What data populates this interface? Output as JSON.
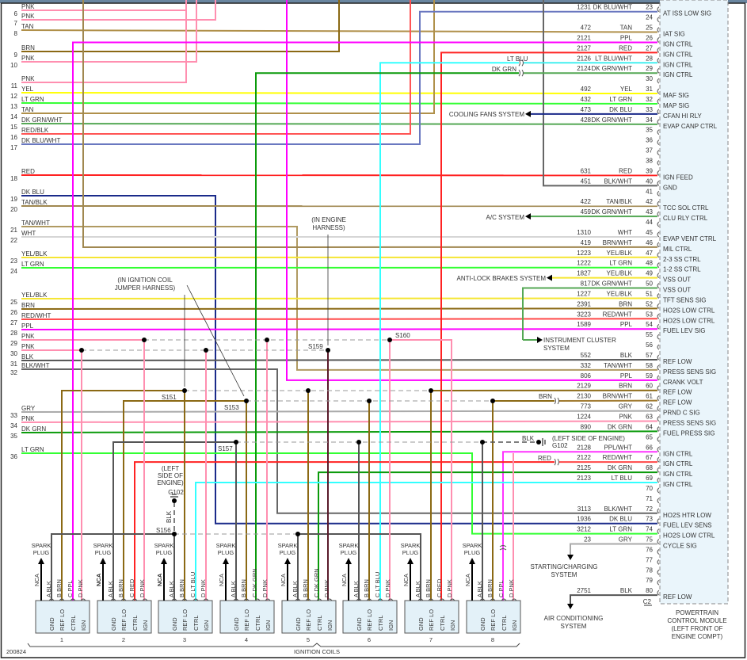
{
  "wire_colors": {
    "PNK": "#ff8fb0",
    "TAN": "#b0904a",
    "BRN": "#8b6914",
    "YEL": "#ffff00",
    "LT GRN": "#33ff33",
    "DK GRN": "#0a9a0a",
    "DK GRN/WHT": "#55a855",
    "RED": "#ff2222",
    "RED/BLK": "#ff5555",
    "RED/WHT": "#ff4848",
    "DK BLU": "#1a2a8a",
    "DK BLU/WHT": "#6a78c0",
    "PPL": "#ff00ff",
    "PPL/WHT": "#ff33ff",
    "WHT": "#d6d6d6",
    "BLK": "#555555",
    "BLK/WHT": "#666666",
    "GRY": "#aaaaaa",
    "LT BLU": "#33ffff",
    "LT BLU/WHT": "#44f0f0",
    "TAN/BLK": "#a08850",
    "TAN/WHT": "#b09a62",
    "YEL/BLK": "#f5e633",
    "BRN/WHT": "#a07a30",
    "MAROON": "#5a1a2a"
  },
  "left_connector": [
    {
      "pin": "6",
      "color": "PNK"
    },
    {
      "pin": "7",
      "color": "PNK"
    },
    {
      "pin": "8",
      "color": "TAN"
    },
    {
      "pin": "9",
      "color": "BRN"
    },
    {
      "pin": "10",
      "color": "PNK"
    },
    {
      "pin": "11",
      "color": "PNK"
    },
    {
      "pin": "12",
      "color": "YEL"
    },
    {
      "pin": "13",
      "color": "LT GRN"
    },
    {
      "pin": "14",
      "color": "TAN"
    },
    {
      "pin": "15",
      "color": "DK GRN/WHT"
    },
    {
      "pin": "16",
      "color": "RED/BLK"
    },
    {
      "pin": "17",
      "color": "DK BLU/WHT"
    },
    {
      "pin": "18",
      "color": "RED"
    },
    {
      "pin": "19",
      "color": "DK BLU"
    },
    {
      "pin": "20",
      "color": "TAN/BLK"
    },
    {
      "pin": "21",
      "color": "TAN/WHT"
    },
    {
      "pin": "22",
      "color": "WHT"
    },
    {
      "pin": "23",
      "color": "YEL/BLK"
    },
    {
      "pin": "24",
      "color": "LT GRN"
    },
    {
      "pin": "25",
      "color": "YEL/BLK"
    },
    {
      "pin": "26",
      "color": "BRN"
    },
    {
      "pin": "27",
      "color": "RED/WHT"
    },
    {
      "pin": "28",
      "color": "PPL"
    },
    {
      "pin": "29",
      "color": "PNK"
    },
    {
      "pin": "30",
      "color": "PNK"
    },
    {
      "pin": "31",
      "color": "BLK"
    },
    {
      "pin": "32",
      "color": "BLK/WHT"
    },
    {
      "pin": "33",
      "color": "GRY"
    },
    {
      "pin": "34",
      "color": "PNK"
    },
    {
      "pin": "35",
      "color": "DK GRN"
    },
    {
      "pin": "36",
      "color": "LT GRN"
    }
  ],
  "pcm": {
    "title": [
      "POWERTRAIN",
      "CONTROL MODULE",
      "(LEFT FRONT OF",
      "ENGINE COMPT)"
    ],
    "connector": "C2",
    "pins": [
      {
        "pin": "23",
        "circuit": "1231",
        "color": "DK BLU/WHT",
        "function": "AT ISS LOW SIG"
      },
      {
        "pin": "24",
        "circuit": "",
        "color": "",
        "function": ""
      },
      {
        "pin": "25",
        "circuit": "472",
        "color": "TAN",
        "function": "IAT SIG"
      },
      {
        "pin": "26",
        "circuit": "2121",
        "color": "PPL",
        "function": "IGN CTRL"
      },
      {
        "pin": "27",
        "circuit": "2127",
        "color": "RED",
        "function": "IGN CTRL"
      },
      {
        "pin": "28",
        "circuit": "2126",
        "color": "LT BLU/WHT",
        "function": "IGN CTRL"
      },
      {
        "pin": "29",
        "circuit": "2124",
        "color": "DK GRN/WHT",
        "function": "IGN CTRL"
      },
      {
        "pin": "30",
        "circuit": "",
        "color": "",
        "function": ""
      },
      {
        "pin": "31",
        "circuit": "492",
        "color": "YEL",
        "function": "MAF SIG"
      },
      {
        "pin": "32",
        "circuit": "432",
        "color": "LT GRN",
        "function": "MAP SIG"
      },
      {
        "pin": "33",
        "circuit": "473",
        "color": "DK BLU",
        "function": "CFAN HI RLY"
      },
      {
        "pin": "34",
        "circuit": "428",
        "color": "DK GRN/WHT",
        "function": "EVAP CANP CTRL"
      },
      {
        "pin": "35",
        "circuit": "",
        "color": "",
        "function": ""
      },
      {
        "pin": "36",
        "circuit": "",
        "color": "",
        "function": ""
      },
      {
        "pin": "37",
        "circuit": "",
        "color": "",
        "function": ""
      },
      {
        "pin": "38",
        "circuit": "",
        "color": "",
        "function": ""
      },
      {
        "pin": "39",
        "circuit": "631",
        "color": "RED",
        "function": "IGN FEED"
      },
      {
        "pin": "40",
        "circuit": "451",
        "color": "BLK/WHT",
        "function": "GND"
      },
      {
        "pin": "41",
        "circuit": "",
        "color": "",
        "function": ""
      },
      {
        "pin": "42",
        "circuit": "422",
        "color": "TAN/BLK",
        "function": "TCC SOL CTRL"
      },
      {
        "pin": "43",
        "circuit": "459",
        "color": "DK GRN/WHT",
        "function": "CLU RLY CTRL"
      },
      {
        "pin": "44",
        "circuit": "",
        "color": "",
        "function": ""
      },
      {
        "pin": "45",
        "circuit": "1310",
        "color": "WHT",
        "function": "EVAP VENT CTRL"
      },
      {
        "pin": "46",
        "circuit": "419",
        "color": "BRN/WHT",
        "function": "MIL CTRL"
      },
      {
        "pin": "47",
        "circuit": "1223",
        "color": "YEL/BLK",
        "function": "2-3 SS CTRL"
      },
      {
        "pin": "48",
        "circuit": "1222",
        "color": "LT GRN",
        "function": "1-2 SS CTRL"
      },
      {
        "pin": "49",
        "circuit": "1827",
        "color": "YEL/BLK",
        "function": "VSS OUT"
      },
      {
        "pin": "50",
        "circuit": "817",
        "color": "DK GRN/WHT",
        "function": "VSS OUT"
      },
      {
        "pin": "51",
        "circuit": "1227",
        "color": "YEL/BLK",
        "function": "TFT SENS SIG"
      },
      {
        "pin": "52",
        "circuit": "2391",
        "color": "BRN",
        "function": "HO2S LOW CTRL"
      },
      {
        "pin": "53",
        "circuit": "3223",
        "color": "RED/WHT",
        "function": "HO2S LOW CTRL"
      },
      {
        "pin": "54",
        "circuit": "1589",
        "color": "PPL",
        "function": "FUEL LEV SIG"
      },
      {
        "pin": "55",
        "circuit": "",
        "color": "",
        "function": ""
      },
      {
        "pin": "56",
        "circuit": "",
        "color": "",
        "function": ""
      },
      {
        "pin": "57",
        "circuit": "552",
        "color": "BLK",
        "function": "REF LOW"
      },
      {
        "pin": "58",
        "circuit": "332",
        "color": "TAN/WHT",
        "function": "PRESS SENS SIG"
      },
      {
        "pin": "59",
        "circuit": "806",
        "color": "PPL",
        "function": "CRANK VOLT"
      },
      {
        "pin": "60",
        "circuit": "2129",
        "color": "BRN",
        "function": "REF LOW"
      },
      {
        "pin": "61",
        "circuit": "2130",
        "color": "BRN/WHT",
        "function": "REF LOW"
      },
      {
        "pin": "62",
        "circuit": "773",
        "color": "GRY",
        "function": "PRND C SIG"
      },
      {
        "pin": "63",
        "circuit": "1224",
        "color": "PNK",
        "function": "PRESS SENS SIG"
      },
      {
        "pin": "64",
        "circuit": "890",
        "color": "DK GRN",
        "function": "FUEL PRESS SIG"
      },
      {
        "pin": "65",
        "circuit": "",
        "color": "",
        "function": ""
      },
      {
        "pin": "66",
        "circuit": "2128",
        "color": "PPL/WHT",
        "function": "IGN CTRL"
      },
      {
        "pin": "67",
        "circuit": "2122",
        "color": "RED/WHT",
        "function": "IGN CTRL"
      },
      {
        "pin": "68",
        "circuit": "2125",
        "color": "DK GRN",
        "function": "IGN CTRL"
      },
      {
        "pin": "69",
        "circuit": "2123",
        "color": "LT BLU",
        "function": "IGN CTRL"
      },
      {
        "pin": "70",
        "circuit": "",
        "color": "",
        "function": ""
      },
      {
        "pin": "71",
        "circuit": "",
        "color": "",
        "function": ""
      },
      {
        "pin": "72",
        "circuit": "3113",
        "color": "BLK/WHT",
        "function": "HO2S HTR LOW"
      },
      {
        "pin": "73",
        "circuit": "1936",
        "color": "DK BLU",
        "function": "FUEL LEV SENS"
      },
      {
        "pin": "74",
        "circuit": "3212",
        "color": "LT GRN",
        "function": "HO2S LOW CTRL"
      },
      {
        "pin": "75",
        "circuit": "23",
        "color": "GRY",
        "function": "CYCLE SIG"
      },
      {
        "pin": "76",
        "circuit": "",
        "color": "",
        "function": ""
      },
      {
        "pin": "77",
        "circuit": "",
        "color": "",
        "function": ""
      },
      {
        "pin": "78",
        "circuit": "",
        "color": "",
        "function": ""
      },
      {
        "pin": "79",
        "circuit": "",
        "color": "",
        "function": ""
      },
      {
        "pin": "80",
        "circuit": "2751",
        "color": "BLK",
        "function": "REF LOW"
      }
    ]
  },
  "systems": {
    "cooling_fans": "COOLING FANS SYSTEM",
    "ac": "A/C SYSTEM",
    "abs": "ANTI-LOCK BRAKES SYSTEM",
    "instrument_cluster": [
      "INSTRUMENT CLUSTER",
      "SYSTEM"
    ],
    "starting_charging": [
      "STARTING/CHARGING",
      "SYSTEM"
    ],
    "air_conditioning": [
      "AIR CONDITIONING",
      "SYSTEM"
    ]
  },
  "inline_labels": {
    "lt_blu": "LT BLU",
    "dk_grn": "DK GRN",
    "brn": "BRN",
    "blk": "BLK",
    "red": "RED"
  },
  "splices": {
    "s151": "S151",
    "s153": "S153",
    "s157": "S157",
    "s156": "S156",
    "s159": "S159",
    "s160": "S160"
  },
  "grounds": {
    "g102_engine": {
      "name": "G102",
      "note": [
        "(LEFT SIDE OF ENGINE)"
      ],
      "wire": "BLK"
    },
    "g102_left": {
      "name": "G102",
      "note": [
        "(LEFT",
        "SIDE OF",
        "ENGINE)"
      ],
      "wire": "BLK"
    }
  },
  "callouts": {
    "jumper": [
      "(IN IGNITION COIL",
      "JUMPER HARNESS)"
    ],
    "engine": [
      "(IN ENGINE",
      "HARNESS)"
    ]
  },
  "coils": {
    "spark_plug": [
      "SPARK",
      "PLUG"
    ],
    "nca": "NCA",
    "terminals": [
      "GND",
      "REF LO",
      "CTRL",
      "IGN"
    ],
    "items": [
      {
        "number": "1",
        "pins": [
          "A BLK",
          "B BRN",
          "C PPL",
          "D PNK"
        ]
      },
      {
        "number": "2",
        "pins": [
          "A BLK",
          "B BRN",
          "C RED",
          "D PNK"
        ]
      },
      {
        "number": "3",
        "pins": [
          "A BLK",
          "B BRN",
          "C LT BLU",
          "D PNK"
        ]
      },
      {
        "number": "4",
        "pins": [
          "A BLK",
          "B BRN",
          "C DK GRN",
          "D PNK"
        ]
      },
      {
        "number": "5",
        "pins": [
          "A BLK",
          "B BRN",
          "C DK GRN",
          "D PNK"
        ]
      },
      {
        "number": "6",
        "pins": [
          "A BLK",
          "B BRN",
          "C LT BLU",
          "D PNK"
        ]
      },
      {
        "number": "7",
        "pins": [
          "A BLK",
          "B BRN",
          "C RED",
          "D PNK"
        ]
      },
      {
        "number": "8",
        "pins": [
          "A BLK",
          "B BRN",
          "C PPL",
          "D PNK"
        ]
      }
    ],
    "group_label": "IGNITION COILS"
  },
  "figure_id": "200824"
}
